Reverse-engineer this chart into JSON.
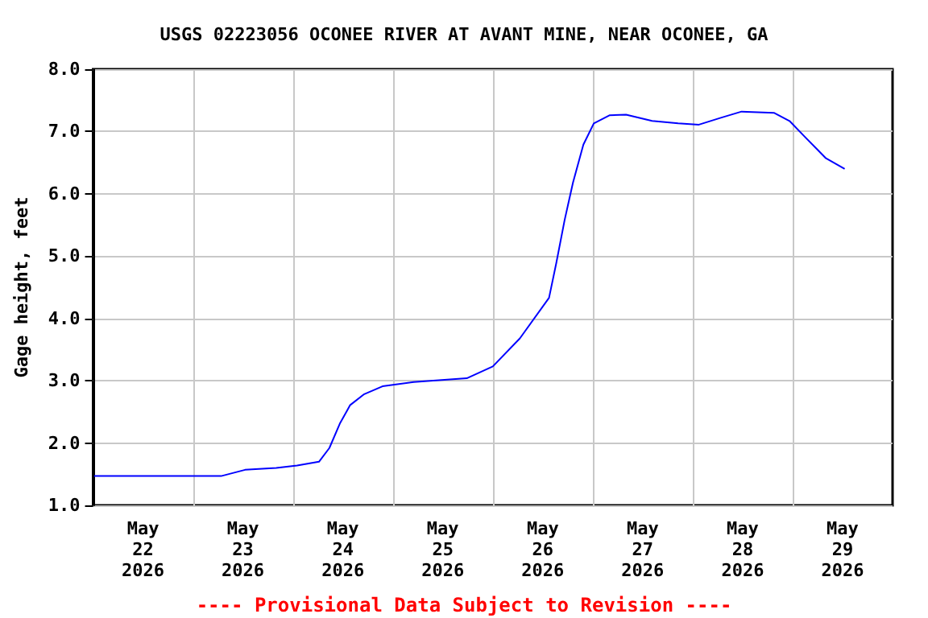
{
  "chart_data": {
    "type": "line",
    "title": "USGS 02223056 OCONEE RIVER AT AVANT MINE, NEAR OCONEE, GA",
    "ylabel": "Gage height, feet",
    "annotations": [
      "---- Provisional Data Subject to Revision ----"
    ],
    "x": [
      "2026-05-22T00:15",
      "2026-05-22T12:00",
      "2026-05-23T00:00",
      "2026-05-23T06:45",
      "2026-05-23T12:30",
      "2026-05-23T20:00",
      "2026-05-24T01:00",
      "2026-05-24T06:15",
      "2026-05-24T08:45",
      "2026-05-24T11:15",
      "2026-05-24T13:45",
      "2026-05-24T17:00",
      "2026-05-24T21:30",
      "2026-05-25T05:00",
      "2026-05-25T17:45",
      "2026-05-26T00:00",
      "2026-05-26T06:30",
      "2026-05-26T13:30",
      "2026-05-26T15:15",
      "2026-05-26T17:15",
      "2026-05-26T19:15",
      "2026-05-26T21:45",
      "2026-05-27T00:15",
      "2026-05-27T04:00",
      "2026-05-27T08:00",
      "2026-05-27T14:15",
      "2026-05-27T20:30",
      "2026-05-28T01:30",
      "2026-05-28T06:45",
      "2026-05-28T11:45",
      "2026-05-28T19:30",
      "2026-05-28T23:15",
      "2026-05-29T03:00",
      "2026-05-29T08:00",
      "2026-05-29T12:30"
    ],
    "series": [
      {
        "color": "#0000ff",
        "values": [
          1.47,
          1.47,
          1.47,
          1.47,
          1.57,
          1.6,
          1.64,
          1.7,
          1.92,
          2.31,
          2.61,
          2.78,
          2.91,
          2.98,
          3.04,
          3.23,
          3.68,
          4.33,
          4.89,
          5.58,
          6.18,
          6.79,
          7.13,
          7.26,
          7.27,
          7.17,
          7.13,
          7.11,
          7.22,
          7.32,
          7.3,
          7.17,
          6.91,
          6.57,
          6.4
        ]
      }
    ],
    "xlim": [
      "2026-05-22T00:00",
      "2026-05-30T00:00"
    ],
    "xticks": [
      {
        "value": "2026-05-22T12:00",
        "label": "May\n22\n2026"
      },
      {
        "value": "2026-05-23T00:00",
        "label": null
      },
      {
        "value": "2026-05-23T12:00",
        "label": "May\n23\n2026"
      },
      {
        "value": "2026-05-24T00:00",
        "label": null
      },
      {
        "value": "2026-05-24T12:00",
        "label": "May\n24\n2026"
      },
      {
        "value": "2026-05-25T00:00",
        "label": null
      },
      {
        "value": "2026-05-25T12:00",
        "label": "May\n25\n2026"
      },
      {
        "value": "2026-05-26T00:00",
        "label": null
      },
      {
        "value": "2026-05-26T12:00",
        "label": "May\n26\n2026"
      },
      {
        "value": "2026-05-27T00:00",
        "label": null
      },
      {
        "value": "2026-05-27T12:00",
        "label": "May\n27\n2026"
      },
      {
        "value": "2026-05-28T00:00",
        "label": null
      },
      {
        "value": "2026-05-28T12:00",
        "label": "May\n28\n2026"
      },
      {
        "value": "2026-05-29T00:00",
        "label": null
      },
      {
        "value": "2026-05-29T12:00",
        "label": "May\n29\n2026"
      }
    ],
    "ylim": [
      1,
      8
    ],
    "yticks": [
      {
        "value": 1,
        "label": "1.0"
      },
      {
        "value": 2,
        "label": "2.0"
      },
      {
        "value": 3,
        "label": "3.0"
      },
      {
        "value": 4,
        "label": "4.0"
      },
      {
        "value": 5,
        "label": "5.0"
      },
      {
        "value": 6,
        "label": "6.0"
      },
      {
        "value": 7,
        "label": "7.0"
      },
      {
        "value": 8,
        "label": "8.0"
      }
    ],
    "grid": true
  }
}
